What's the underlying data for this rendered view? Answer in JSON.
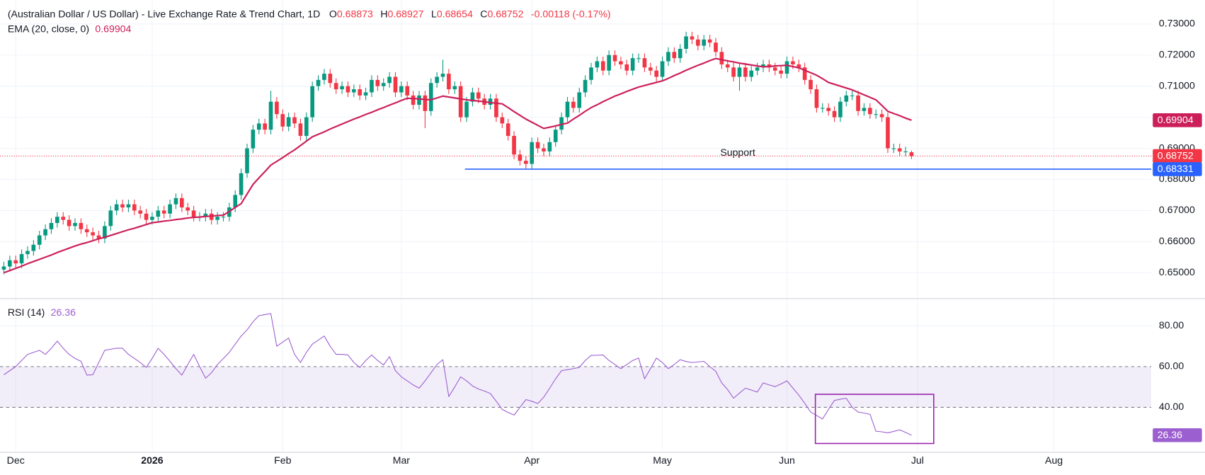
{
  "chart_data": {
    "type": "candlestick",
    "title": "(Australian Dollar / US Dollar) - Live Exchange Rate & Trend Chart, 1D",
    "ohlc_labels": [
      "O",
      "H",
      "L",
      "C"
    ],
    "change": "-0.00118 (-0.17%)",
    "up_color": "#089981",
    "down_color": "#f23645",
    "grid": true,
    "xlim": [
      -0.65,
      193.4
    ],
    "xticks": [
      {
        "value": 2,
        "label": "Dec"
      },
      {
        "value": 25,
        "label": "2026"
      },
      {
        "value": 47,
        "label": "Feb"
      },
      {
        "value": 67,
        "label": "Mar"
      },
      {
        "value": 89,
        "label": "Apr"
      },
      {
        "value": 111,
        "label": "May"
      },
      {
        "value": 132,
        "label": "Jun"
      },
      {
        "value": 154,
        "label": "Jul"
      },
      {
        "value": 177,
        "label": "Aug"
      }
    ],
    "ylim": [
      0.6418,
      0.7377
    ],
    "yticks": [
      {
        "value": 0.65,
        "label": "0.65000"
      },
      {
        "value": 0.66,
        "label": "0.66000"
      },
      {
        "value": 0.67,
        "label": "0.67000"
      },
      {
        "value": 0.68,
        "label": "0.68000"
      },
      {
        "value": 0.69,
        "label": "0.69000"
      },
      {
        "value": 0.7,
        "label": "0.70000"
      },
      {
        "value": 0.71,
        "label": "0.71000"
      },
      {
        "value": 0.72,
        "label": "0.72000"
      },
      {
        "value": 0.73,
        "label": "0.73000"
      }
    ],
    "open": [
      0.651,
      0.652,
      0.654,
      0.653,
      0.656,
      0.657,
      0.659,
      0.662,
      0.664,
      0.666,
      0.668,
      0.667,
      0.665,
      0.666,
      0.664,
      0.663,
      0.662,
      0.661,
      0.665,
      0.67,
      0.672,
      0.671,
      0.672,
      0.67,
      0.669,
      0.667,
      0.668,
      0.67,
      0.669,
      0.672,
      0.674,
      0.671,
      0.67,
      0.668,
      0.668,
      0.669,
      0.667,
      0.668,
      0.668,
      0.671,
      0.675,
      0.682,
      0.69,
      0.696,
      0.698,
      0.696,
      0.705,
      0.701,
      0.697,
      0.7,
      0.698,
      0.694,
      0.7,
      0.71,
      0.712,
      0.714,
      0.711,
      0.709,
      0.71,
      0.708,
      0.709,
      0.707,
      0.708,
      0.712,
      0.71,
      0.711,
      0.713,
      0.708,
      0.71,
      0.707,
      0.704,
      0.707,
      0.702,
      0.711,
      0.713,
      0.714,
      0.709,
      0.71,
      0.7,
      0.705,
      0.708,
      0.706,
      0.704,
      0.706,
      0.7,
      0.698,
      0.694,
      0.688,
      0.686,
      0.685,
      0.692,
      0.69,
      0.689,
      0.692,
      0.696,
      0.7,
      0.705,
      0.703,
      0.708,
      0.712,
      0.716,
      0.718,
      0.715,
      0.72,
      0.718,
      0.717,
      0.715,
      0.719,
      0.719,
      0.716,
      0.715,
      0.713,
      0.718,
      0.721,
      0.719,
      0.722,
      0.726,
      0.725,
      0.723,
      0.725,
      0.724,
      0.721,
      0.717,
      0.716,
      0.713,
      0.716,
      0.713,
      0.715,
      0.716,
      0.717,
      0.716,
      0.715,
      0.714,
      0.718,
      0.717,
      0.716,
      0.712,
      0.709,
      0.703,
      0.703,
      0.702,
      0.7,
      0.705,
      0.707,
      0.707,
      0.702,
      0.703,
      0.701,
      0.701,
      0.7,
      0.69,
      0.69,
      0.689,
      0.68873
    ],
    "high": [
      0.6535,
      0.6555,
      0.6555,
      0.6575,
      0.6585,
      0.6605,
      0.6635,
      0.6655,
      0.6675,
      0.6695,
      0.6695,
      0.6685,
      0.6675,
      0.6675,
      0.6655,
      0.6645,
      0.6635,
      0.6665,
      0.6715,
      0.6735,
      0.6735,
      0.6735,
      0.6735,
      0.6715,
      0.6705,
      0.6695,
      0.6715,
      0.6715,
      0.6735,
      0.6755,
      0.6755,
      0.6725,
      0.6715,
      0.6695,
      0.6705,
      0.6705,
      0.6695,
      0.6695,
      0.6725,
      0.6765,
      0.6835,
      0.6915,
      0.6975,
      0.6995,
      0.6995,
      0.7085,
      0.7065,
      0.7025,
      0.7015,
      0.7015,
      0.6995,
      0.7015,
      0.7115,
      0.7135,
      0.7155,
      0.7155,
      0.7125,
      0.7115,
      0.7115,
      0.7105,
      0.7105,
      0.7095,
      0.7135,
      0.7135,
      0.7125,
      0.7145,
      0.7145,
      0.7115,
      0.7115,
      0.7085,
      0.7085,
      0.7085,
      0.7125,
      0.7145,
      0.7185,
      0.7155,
      0.7115,
      0.7115,
      0.7065,
      0.7095,
      0.7095,
      0.7075,
      0.7075,
      0.7075,
      0.7015,
      0.6995,
      0.6955,
      0.6895,
      0.6875,
      0.6935,
      0.6935,
      0.6915,
      0.6935,
      0.6975,
      0.7015,
      0.7065,
      0.7065,
      0.7095,
      0.7135,
      0.7175,
      0.7195,
      0.7195,
      0.7215,
      0.7215,
      0.7195,
      0.7185,
      0.7205,
      0.7205,
      0.7205,
      0.7175,
      0.7165,
      0.7195,
      0.7225,
      0.7225,
      0.7235,
      0.7275,
      0.7275,
      0.7265,
      0.7265,
      0.7265,
      0.7255,
      0.7225,
      0.7185,
      0.7175,
      0.7175,
      0.7175,
      0.7165,
      0.7175,
      0.7185,
      0.7185,
      0.7175,
      0.7165,
      0.7195,
      0.7195,
      0.7185,
      0.7175,
      0.7135,
      0.7105,
      0.7045,
      0.7045,
      0.7035,
      0.7065,
      0.7085,
      0.7085,
      0.7085,
      0.7045,
      0.7045,
      0.7025,
      0.7025,
      0.7015,
      0.6915,
      0.6915,
      0.6905,
      0.68927
    ],
    "low": [
      0.6495,
      0.6505,
      0.6515,
      0.6515,
      0.6545,
      0.6555,
      0.6575,
      0.6605,
      0.6625,
      0.6645,
      0.6655,
      0.6635,
      0.6635,
      0.6625,
      0.6615,
      0.6605,
      0.6595,
      0.6595,
      0.6635,
      0.6685,
      0.6695,
      0.6695,
      0.6685,
      0.6675,
      0.6655,
      0.6655,
      0.6665,
      0.6675,
      0.6675,
      0.6705,
      0.6695,
      0.6685,
      0.6665,
      0.6665,
      0.6665,
      0.6655,
      0.6655,
      0.6665,
      0.6665,
      0.6695,
      0.6735,
      0.6805,
      0.6885,
      0.6945,
      0.6945,
      0.6945,
      0.6995,
      0.6955,
      0.6955,
      0.6965,
      0.6925,
      0.6925,
      0.6985,
      0.7085,
      0.7105,
      0.7095,
      0.7075,
      0.7075,
      0.7065,
      0.7065,
      0.7055,
      0.7055,
      0.7065,
      0.7085,
      0.7085,
      0.7095,
      0.7065,
      0.7065,
      0.7055,
      0.7025,
      0.7025,
      0.6965,
      0.7005,
      0.7095,
      0.7115,
      0.7075,
      0.7075,
      0.6985,
      0.6985,
      0.7035,
      0.7045,
      0.7025,
      0.7025,
      0.6985,
      0.6965,
      0.6925,
      0.6865,
      0.6845,
      0.6835,
      0.6835,
      0.6885,
      0.6875,
      0.6875,
      0.6905,
      0.6945,
      0.6985,
      0.7015,
      0.7015,
      0.7065,
      0.7105,
      0.7145,
      0.7135,
      0.7135,
      0.7165,
      0.7155,
      0.7135,
      0.7135,
      0.7175,
      0.7145,
      0.7135,
      0.7115,
      0.7115,
      0.7165,
      0.7175,
      0.7175,
      0.7205,
      0.7235,
      0.7215,
      0.7215,
      0.7225,
      0.7195,
      0.7155,
      0.7145,
      0.7115,
      0.7085,
      0.7115,
      0.7115,
      0.7135,
      0.7145,
      0.7145,
      0.7135,
      0.7125,
      0.7125,
      0.7155,
      0.7145,
      0.7105,
      0.7075,
      0.7015,
      0.7015,
      0.7005,
      0.6985,
      0.6985,
      0.7035,
      0.7055,
      0.7005,
      0.7005,
      0.6995,
      0.6995,
      0.6985,
      0.6885,
      0.6885,
      0.6875,
      0.6875,
      0.68654
    ],
    "close": [
      0.652,
      0.654,
      0.653,
      0.656,
      0.657,
      0.659,
      0.662,
      0.664,
      0.666,
      0.668,
      0.667,
      0.665,
      0.666,
      0.664,
      0.663,
      0.662,
      0.661,
      0.665,
      0.67,
      0.672,
      0.671,
      0.672,
      0.67,
      0.669,
      0.667,
      0.668,
      0.67,
      0.669,
      0.672,
      0.674,
      0.671,
      0.67,
      0.668,
      0.668,
      0.669,
      0.667,
      0.668,
      0.668,
      0.671,
      0.675,
      0.682,
      0.69,
      0.696,
      0.698,
      0.696,
      0.705,
      0.701,
      0.697,
      0.7,
      0.698,
      0.694,
      0.7,
      0.71,
      0.712,
      0.714,
      0.711,
      0.709,
      0.71,
      0.708,
      0.709,
      0.707,
      0.708,
      0.712,
      0.71,
      0.711,
      0.713,
      0.708,
      0.71,
      0.707,
      0.704,
      0.707,
      0.702,
      0.711,
      0.713,
      0.714,
      0.709,
      0.71,
      0.7,
      0.705,
      0.708,
      0.706,
      0.704,
      0.706,
      0.7,
      0.698,
      0.694,
      0.688,
      0.686,
      0.685,
      0.692,
      0.69,
      0.689,
      0.692,
      0.696,
      0.7,
      0.705,
      0.703,
      0.708,
      0.712,
      0.716,
      0.718,
      0.715,
      0.72,
      0.718,
      0.717,
      0.715,
      0.719,
      0.719,
      0.716,
      0.715,
      0.713,
      0.718,
      0.721,
      0.719,
      0.722,
      0.726,
      0.725,
      0.723,
      0.725,
      0.724,
      0.721,
      0.717,
      0.716,
      0.713,
      0.716,
      0.713,
      0.715,
      0.716,
      0.717,
      0.716,
      0.715,
      0.714,
      0.718,
      0.717,
      0.716,
      0.712,
      0.709,
      0.703,
      0.703,
      0.702,
      0.7,
      0.705,
      0.707,
      0.707,
      0.702,
      0.703,
      0.701,
      0.701,
      0.7,
      0.69,
      0.69,
      0.689,
      0.689,
      0.68752
    ],
    "ema": {
      "label": "EMA (20, close, 0)",
      "color": "#cc1f5a",
      "values": [
        0.65,
        0.6507,
        0.6514,
        0.6521,
        0.6529,
        0.6536,
        0.6543,
        0.655,
        0.6557,
        0.6565,
        0.6572,
        0.6579,
        0.6586,
        0.6592,
        0.6597,
        0.6603,
        0.6609,
        0.6614,
        0.662,
        0.6626,
        0.6632,
        0.6638,
        0.6643,
        0.6649,
        0.6655,
        0.6661,
        0.6663,
        0.6666,
        0.6668,
        0.6671,
        0.6673,
        0.6676,
        0.6678,
        0.6679,
        0.6681,
        0.6682,
        0.6684,
        0.6685,
        0.6697,
        0.671,
        0.6722,
        0.6753,
        0.6784,
        0.6805,
        0.6825,
        0.6846,
        0.6858,
        0.687,
        0.6883,
        0.6895,
        0.6909,
        0.6923,
        0.6937,
        0.6945,
        0.6953,
        0.6962,
        0.697,
        0.6978,
        0.6986,
        0.6994,
        0.7001,
        0.7009,
        0.7016,
        0.7024,
        0.7031,
        0.7039,
        0.7046,
        0.7054,
        0.7061,
        0.706,
        0.7059,
        0.7057,
        0.7056,
        0.7062,
        0.7068,
        0.7065,
        0.7062,
        0.7059,
        0.7056,
        0.7054,
        0.7052,
        0.705,
        0.7047,
        0.7045,
        0.7043,
        0.7031,
        0.7018,
        0.7006,
        0.6994,
        0.6984,
        0.6974,
        0.6964,
        0.6968,
        0.6972,
        0.6977,
        0.6981,
        0.6994,
        0.7006,
        0.7019,
        0.7031,
        0.704,
        0.705,
        0.7059,
        0.7068,
        0.7075,
        0.7083,
        0.709,
        0.7097,
        0.7102,
        0.7107,
        0.7112,
        0.7117,
        0.7125,
        0.7134,
        0.7142,
        0.7151,
        0.7159,
        0.7167,
        0.7174,
        0.7182,
        0.7189,
        0.7185,
        0.7181,
        0.7178,
        0.7174,
        0.7171,
        0.7168,
        0.7165,
        0.7162,
        0.7163,
        0.7165,
        0.7166,
        0.7167,
        0.7163,
        0.7159,
        0.7151,
        0.7143,
        0.7135,
        0.7124,
        0.7112,
        0.7106,
        0.71,
        0.7094,
        0.7088,
        0.708,
        0.7072,
        0.7064,
        0.7056,
        0.7038,
        0.7019,
        0.7012,
        0.7005,
        0.6997,
        0.69904
      ]
    },
    "support": {
      "label": "Support",
      "value": 0.68331,
      "color": "#2962ff"
    },
    "rsi": {
      "label": "RSI (14)",
      "color": "#9c5fd0",
      "ylim": [
        18.5,
        92.8
      ],
      "yticks": [
        {
          "value": 40,
          "label": "40.00"
        },
        {
          "value": 60,
          "label": "60.00"
        },
        {
          "value": 80,
          "label": "80.00"
        }
      ],
      "values": [
        56,
        58,
        60,
        63,
        66,
        67,
        68,
        66,
        69,
        72.5,
        69,
        66,
        64,
        62.6,
        55.8,
        56,
        62,
        68,
        68.5,
        69,
        69,
        66,
        64,
        62,
        59.6,
        64,
        69,
        66,
        62.6,
        59,
        55.8,
        61,
        66,
        60,
        54.3,
        57,
        61,
        64,
        67,
        71,
        75,
        78,
        82,
        85,
        85.5,
        86,
        70,
        72,
        74,
        66,
        62,
        67,
        71,
        73,
        75,
        70,
        66,
        66,
        65.7,
        62,
        59.6,
        63,
        65.7,
        63,
        60.8,
        64.9,
        58,
        55,
        53,
        51,
        49.4,
        53,
        57,
        61,
        63.4,
        45.3,
        50,
        55,
        53,
        50.5,
        49,
        48,
        46.8,
        43,
        39,
        37.5,
        36.2,
        40,
        43.8,
        43,
        41.9,
        45,
        49.4,
        54,
        58,
        58.5,
        59,
        59.6,
        63,
        65.5,
        65.6,
        65.7,
        63,
        61,
        59,
        61,
        63,
        64.2,
        54,
        59,
        64.2,
        62,
        59,
        61,
        63.4,
        62.5,
        62,
        62.3,
        62.6,
        60,
        57.7,
        52,
        48.7,
        44.5,
        47,
        49.4,
        48.5,
        47.5,
        52,
        51,
        50.2,
        51.5,
        53,
        49.5,
        46,
        42,
        37.7,
        36,
        34.3,
        39,
        43.4,
        44,
        44.5,
        40,
        37.7,
        37.2,
        36.6,
        28.3,
        28,
        27.5,
        28.2,
        29,
        27.7,
        26.36
      ]
    }
  }
}
